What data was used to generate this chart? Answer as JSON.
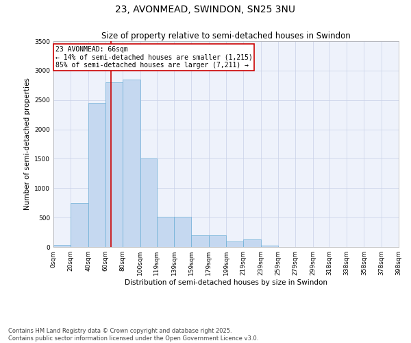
{
  "title": "23, AVONMEAD, SWINDON, SN25 3NU",
  "subtitle": "Size of property relative to semi-detached houses in Swindon",
  "xlabel": "Distribution of semi-detached houses by size in Swindon",
  "ylabel": "Number of semi-detached properties",
  "property_size": 66,
  "property_label": "23 AVONMEAD: 66sqm",
  "pct_smaller": 14,
  "count_smaller": 1215,
  "pct_larger": 85,
  "count_larger": 7211,
  "bar_color": "#c5d8f0",
  "bar_edge_color": "#6baed6",
  "vline_color": "#cc0000",
  "annotation_box_color": "#cc0000",
  "background_color": "#eef2fb",
  "grid_color": "#c8d0e8",
  "bins": [
    0,
    20,
    40,
    60,
    80,
    100,
    119,
    139,
    159,
    179,
    199,
    219,
    239,
    259,
    279,
    299,
    318,
    338,
    358,
    378,
    398
  ],
  "bin_labels": [
    "0sqm",
    "20sqm",
    "40sqm",
    "60sqm",
    "80sqm",
    "100sqm",
    "119sqm",
    "139sqm",
    "159sqm",
    "179sqm",
    "199sqm",
    "219sqm",
    "239sqm",
    "259sqm",
    "279sqm",
    "299sqm",
    "318sqm",
    "338sqm",
    "358sqm",
    "378sqm",
    "398sqm"
  ],
  "counts": [
    30,
    750,
    2450,
    2800,
    2850,
    1500,
    510,
    510,
    200,
    200,
    90,
    130,
    25,
    5,
    5,
    3,
    3,
    0,
    0,
    0
  ],
  "ylim": [
    0,
    3500
  ],
  "yticks": [
    0,
    500,
    1000,
    1500,
    2000,
    2500,
    3000,
    3500
  ],
  "footnote": "Contains HM Land Registry data © Crown copyright and database right 2025.\nContains public sector information licensed under the Open Government Licence v3.0.",
  "title_fontsize": 10,
  "subtitle_fontsize": 8.5,
  "axis_label_fontsize": 7.5,
  "tick_fontsize": 6.5,
  "annotation_fontsize": 7,
  "footnote_fontsize": 6
}
